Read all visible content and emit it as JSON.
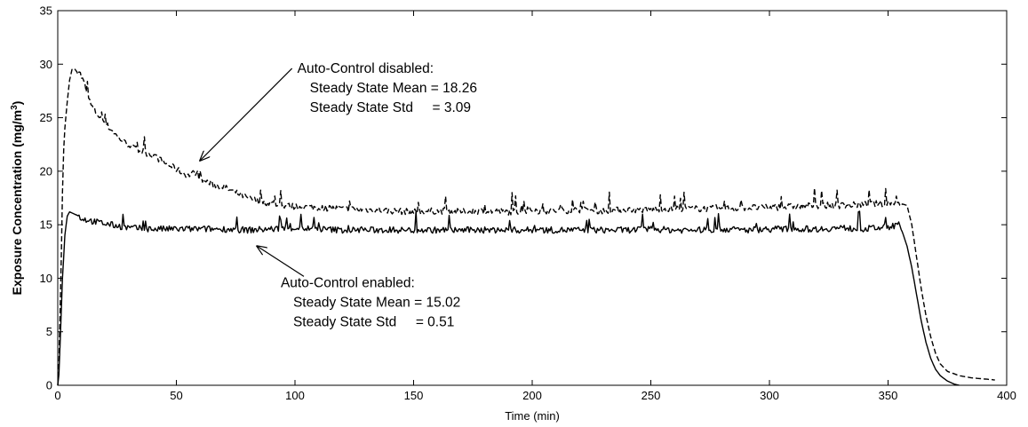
{
  "chart_data": {
    "type": "line",
    "title": "",
    "xlabel": "Time (min)",
    "ylabel_main": "Exposure Concentration (mg/m",
    "ylabel_sup": "3",
    "ylabel_end": ")",
    "xlim": [
      0,
      400
    ],
    "ylim": [
      0,
      35
    ],
    "xticks": [
      0,
      50,
      100,
      150,
      200,
      250,
      300,
      350,
      400
    ],
    "yticks": [
      0,
      5,
      10,
      15,
      20,
      25,
      30,
      35
    ],
    "grid": false,
    "series": [
      {
        "style": "dashed",
        "points": [
          [
            0,
            0
          ],
          [
            0.5,
            2
          ],
          [
            1,
            7
          ],
          [
            1.5,
            12
          ],
          [
            2,
            18
          ],
          [
            2.5,
            22
          ],
          [
            3,
            24
          ],
          [
            4,
            26.5
          ],
          [
            5,
            28.5
          ],
          [
            6,
            29.5
          ],
          [
            7,
            29.6
          ],
          [
            8,
            29.3
          ],
          [
            9,
            29.4
          ],
          [
            10,
            28.8
          ],
          [
            11,
            28.3
          ],
          [
            12,
            27.5
          ],
          [
            14,
            26.2
          ],
          [
            16,
            25.5
          ],
          [
            18,
            25.0
          ],
          [
            20,
            24.5
          ],
          [
            22,
            24.0
          ],
          [
            25,
            23.3
          ],
          [
            28,
            22.7
          ],
          [
            30,
            22.5
          ],
          [
            33,
            22.0
          ],
          [
            36,
            21.8
          ],
          [
            40,
            21.5
          ],
          [
            45,
            20.8
          ],
          [
            50,
            20.2
          ],
          [
            55,
            19.6
          ],
          [
            58,
            19.9
          ],
          [
            60,
            19.3
          ],
          [
            65,
            18.8
          ],
          [
            70,
            18.5
          ],
          [
            75,
            18.0
          ],
          [
            80,
            17.5
          ],
          [
            85,
            17.2
          ],
          [
            90,
            17.0
          ],
          [
            95,
            16.8
          ],
          [
            100,
            16.7
          ],
          [
            110,
            16.6
          ],
          [
            120,
            16.5
          ],
          [
            130,
            16.4
          ],
          [
            140,
            16.3
          ],
          [
            150,
            16.2
          ],
          [
            160,
            16.3
          ],
          [
            170,
            16.2
          ],
          [
            180,
            16.3
          ],
          [
            190,
            16.2
          ],
          [
            200,
            16.3
          ],
          [
            210,
            16.3
          ],
          [
            220,
            16.4
          ],
          [
            230,
            16.3
          ],
          [
            240,
            16.4
          ],
          [
            250,
            16.4
          ],
          [
            260,
            16.5
          ],
          [
            270,
            16.5
          ],
          [
            280,
            16.5
          ],
          [
            290,
            16.6
          ],
          [
            300,
            16.6
          ],
          [
            310,
            16.7
          ],
          [
            320,
            16.8
          ],
          [
            330,
            16.8
          ],
          [
            340,
            16.9
          ],
          [
            350,
            17.0
          ],
          [
            355,
            17.0
          ],
          [
            358,
            16.8
          ],
          [
            360,
            15.0
          ],
          [
            362,
            12.0
          ],
          [
            364,
            9.0
          ],
          [
            366,
            6.5
          ],
          [
            368,
            4.5
          ],
          [
            370,
            3.0
          ],
          [
            372,
            2.0
          ],
          [
            375,
            1.3
          ],
          [
            380,
            0.9
          ],
          [
            385,
            0.7
          ],
          [
            390,
            0.6
          ],
          [
            395,
            0.5
          ]
        ]
      },
      {
        "style": "solid",
        "points": [
          [
            0,
            0
          ],
          [
            0.5,
            1
          ],
          [
            1,
            4
          ],
          [
            2,
            10
          ],
          [
            3,
            14
          ],
          [
            4,
            15.8
          ],
          [
            5,
            16.2
          ],
          [
            6,
            16.1
          ],
          [
            8,
            15.9
          ],
          [
            10,
            15.6
          ],
          [
            15,
            15.3
          ],
          [
            20,
            15.1
          ],
          [
            25,
            14.9
          ],
          [
            30,
            14.7
          ],
          [
            40,
            14.6
          ],
          [
            50,
            14.6
          ],
          [
            60,
            14.6
          ],
          [
            70,
            14.6
          ],
          [
            80,
            14.5
          ],
          [
            90,
            14.6
          ],
          [
            100,
            14.7
          ],
          [
            110,
            14.6
          ],
          [
            120,
            14.5
          ],
          [
            130,
            14.5
          ],
          [
            140,
            14.5
          ],
          [
            150,
            14.5
          ],
          [
            160,
            14.5
          ],
          [
            170,
            14.5
          ],
          [
            180,
            14.5
          ],
          [
            190,
            14.5
          ],
          [
            200,
            14.5
          ],
          [
            210,
            14.5
          ],
          [
            220,
            14.5
          ],
          [
            230,
            14.5
          ],
          [
            240,
            14.5
          ],
          [
            250,
            14.6
          ],
          [
            260,
            14.5
          ],
          [
            270,
            14.5
          ],
          [
            280,
            14.6
          ],
          [
            290,
            14.5
          ],
          [
            300,
            14.6
          ],
          [
            310,
            14.6
          ],
          [
            320,
            14.6
          ],
          [
            330,
            14.7
          ],
          [
            340,
            14.6
          ],
          [
            350,
            14.8
          ],
          [
            355,
            15.0
          ],
          [
            358,
            13.0
          ],
          [
            360,
            11.0
          ],
          [
            362,
            8.5
          ],
          [
            364,
            6.0
          ],
          [
            366,
            4.0
          ],
          [
            368,
            2.5
          ],
          [
            370,
            1.5
          ],
          [
            372,
            0.9
          ],
          [
            375,
            0.4
          ],
          [
            378,
            0.1
          ],
          [
            380,
            0
          ]
        ]
      }
    ],
    "annotations": [
      {
        "lines": [
          "Auto-Control disabled:",
          "Steady State Mean = 18.26",
          "Steady State Std     = 3.09"
        ],
        "text_x": 101,
        "text_y": 29.6,
        "arrow_from": [
          101,
          29.6
        ],
        "arrow_to": [
          60,
          21.0
        ]
      },
      {
        "lines": [
          "Auto-Control enabled:",
          "Steady State Mean = 15.02",
          "Steady State Std     = 0.51"
        ],
        "text_x": 94,
        "text_y": 9.6,
        "arrow_from": [
          100,
          10.5
        ],
        "arrow_to": [
          84,
          13.0
        ]
      }
    ]
  }
}
